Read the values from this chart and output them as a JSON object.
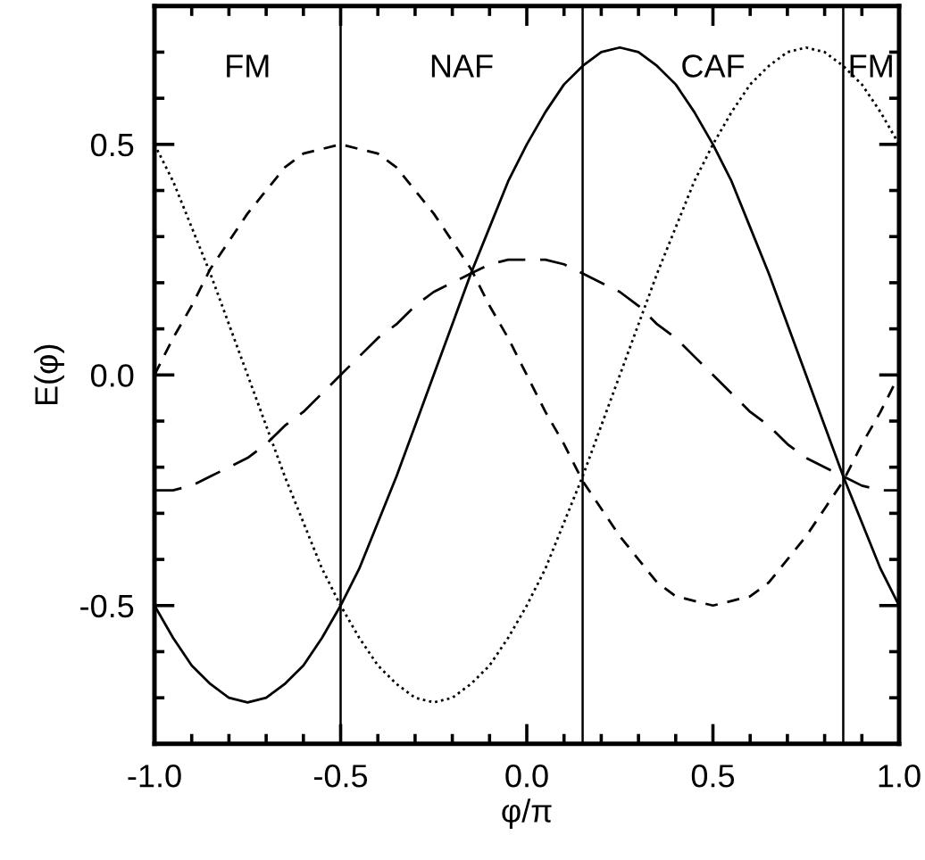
{
  "chart_data": {
    "type": "line",
    "xlabel": "φ/π",
    "ylabel": "E(φ)",
    "x": [
      -1,
      -0.95,
      -0.9,
      -0.85,
      -0.8,
      -0.75,
      -0.7,
      -0.65,
      -0.6,
      -0.55,
      -0.5,
      -0.45,
      -0.4,
      -0.35,
      -0.3,
      -0.25,
      -0.2,
      -0.15,
      -0.1,
      -0.05,
      0,
      0.05,
      0.1,
      0.15,
      0.2,
      0.25,
      0.3,
      0.35,
      0.4,
      0.45,
      0.5,
      0.55,
      0.6,
      0.65,
      0.7,
      0.75,
      0.8,
      0.85,
      0.9,
      0.95,
      1
    ],
    "series": [
      {
        "color": "#000000",
        "line_style": "solid",
        "values": [
          -0.5,
          -0.57,
          -0.63,
          -0.67,
          -0.7,
          -0.71,
          -0.7,
          -0.67,
          -0.63,
          -0.57,
          -0.5,
          -0.42,
          -0.32,
          -0.22,
          -0.11,
          0,
          0.11,
          0.22,
          0.32,
          0.42,
          0.5,
          0.57,
          0.63,
          0.67,
          0.7,
          0.71,
          0.7,
          0.67,
          0.63,
          0.57,
          0.5,
          0.42,
          0.32,
          0.22,
          0.11,
          0,
          -0.11,
          -0.22,
          -0.32,
          -0.42,
          -0.5
        ]
      },
      {
        "color": "#000000",
        "line_style": "dotted",
        "values": [
          0.5,
          0.42,
          0.32,
          0.22,
          0.11,
          0,
          -0.11,
          -0.22,
          -0.32,
          -0.42,
          -0.5,
          -0.57,
          -0.63,
          -0.67,
          -0.7,
          -0.71,
          -0.7,
          -0.67,
          -0.63,
          -0.57,
          -0.5,
          -0.42,
          -0.32,
          -0.22,
          -0.11,
          0,
          0.11,
          0.22,
          0.32,
          0.42,
          0.5,
          0.57,
          0.63,
          0.67,
          0.7,
          0.71,
          0.7,
          0.67,
          0.63,
          0.57,
          0.5
        ]
      },
      {
        "color": "#000000",
        "line_style": "dashed",
        "values": [
          0,
          0.08,
          0.15,
          0.23,
          0.29,
          0.35,
          0.4,
          0.45,
          0.48,
          0.49,
          0.5,
          0.49,
          0.48,
          0.45,
          0.4,
          0.35,
          0.29,
          0.23,
          0.15,
          0.08,
          0,
          -0.08,
          -0.15,
          -0.23,
          -0.29,
          -0.35,
          -0.4,
          -0.45,
          -0.48,
          -0.49,
          -0.5,
          -0.49,
          -0.48,
          -0.45,
          -0.4,
          -0.35,
          -0.29,
          -0.23,
          -0.15,
          -0.08,
          0
        ]
      },
      {
        "color": "#000000",
        "line_style": "dashed",
        "values": [
          -0.25,
          -0.25,
          -0.24,
          -0.22,
          -0.2,
          -0.18,
          -0.15,
          -0.11,
          -0.08,
          -0.04,
          0,
          0.04,
          0.08,
          0.11,
          0.15,
          0.18,
          0.2,
          0.22,
          0.24,
          0.25,
          0.25,
          0.25,
          0.24,
          0.22,
          0.2,
          0.18,
          0.15,
          0.11,
          0.08,
          0.04,
          0,
          -0.04,
          -0.08,
          -0.11,
          -0.15,
          -0.18,
          -0.2,
          -0.22,
          -0.24,
          -0.25,
          -0.25
        ]
      }
    ],
    "xlim": [
      -1,
      1
    ],
    "ylim": [
      -0.8,
      0.8
    ],
    "xticks": [
      {
        "value": -1,
        "label": "-1.0"
      },
      {
        "value": -0.9,
        "label": null
      },
      {
        "value": -0.8,
        "label": null
      },
      {
        "value": -0.7,
        "label": null
      },
      {
        "value": -0.6,
        "label": null
      },
      {
        "value": -0.5,
        "label": "-0.5"
      },
      {
        "value": -0.4,
        "label": null
      },
      {
        "value": -0.3,
        "label": null
      },
      {
        "value": -0.2,
        "label": null
      },
      {
        "value": -0.1,
        "label": null
      },
      {
        "value": 0,
        "label": "0.0"
      },
      {
        "value": 0.1,
        "label": null
      },
      {
        "value": 0.2,
        "label": null
      },
      {
        "value": 0.3,
        "label": null
      },
      {
        "value": 0.4,
        "label": null
      },
      {
        "value": 0.5,
        "label": "0.5"
      },
      {
        "value": 0.6,
        "label": null
      },
      {
        "value": 0.7,
        "label": null
      },
      {
        "value": 0.8,
        "label": null
      },
      {
        "value": 0.9,
        "label": null
      },
      {
        "value": 1,
        "label": "1.0"
      }
    ],
    "yticks": [
      {
        "value": -0.8,
        "label": null
      },
      {
        "value": -0.7,
        "label": null
      },
      {
        "value": -0.6,
        "label": null
      },
      {
        "value": -0.5,
        "label": "-0.5"
      },
      {
        "value": -0.4,
        "label": null
      },
      {
        "value": -0.3,
        "label": null
      },
      {
        "value": -0.2,
        "label": null
      },
      {
        "value": -0.1,
        "label": null
      },
      {
        "value": 0,
        "label": "0.0"
      },
      {
        "value": 0.1,
        "label": null
      },
      {
        "value": 0.2,
        "label": null
      },
      {
        "value": 0.3,
        "label": null
      },
      {
        "value": 0.4,
        "label": null
      },
      {
        "value": 0.5,
        "label": "0.5"
      },
      {
        "value": 0.6,
        "label": null
      },
      {
        "value": 0.7,
        "label": null
      },
      {
        "value": 0.8,
        "label": null
      }
    ],
    "ref_lines": [
      {
        "axis": "x",
        "value": -0.5,
        "color": "#000000"
      },
      {
        "axis": "x",
        "value": 0.15,
        "color": "#000000"
      },
      {
        "axis": "x",
        "value": 0.85,
        "color": "#000000"
      }
    ],
    "annotations": [
      "FM",
      "NAF",
      "CAF",
      "FM"
    ],
    "grid": false,
    "legend": false
  }
}
